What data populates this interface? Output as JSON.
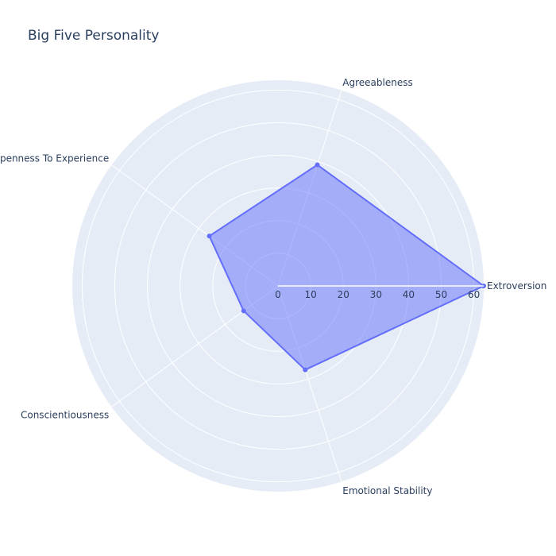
{
  "chart_data": {
    "type": "radar",
    "title": "Big Five Personality",
    "categories": [
      "Extroversion",
      "Agreeableness",
      "Openness To Experience",
      "Conscientiousness",
      "Emotional Stability"
    ],
    "series": [
      {
        "values": [
          63,
          39,
          26,
          13,
          27
        ],
        "color": "#636efa",
        "fill": "rgba(99,110,250,0.5)"
      }
    ],
    "radial_range": [
      0,
      63
    ],
    "radial_ticks": [
      0,
      10,
      20,
      30,
      40,
      50,
      60
    ],
    "angular_direction": "counterclockwise",
    "start_angle_deg": 0,
    "polar_bgcolor": "#e5ecf6",
    "grid_color": "#ffffff",
    "grid": true,
    "legend": "none"
  }
}
